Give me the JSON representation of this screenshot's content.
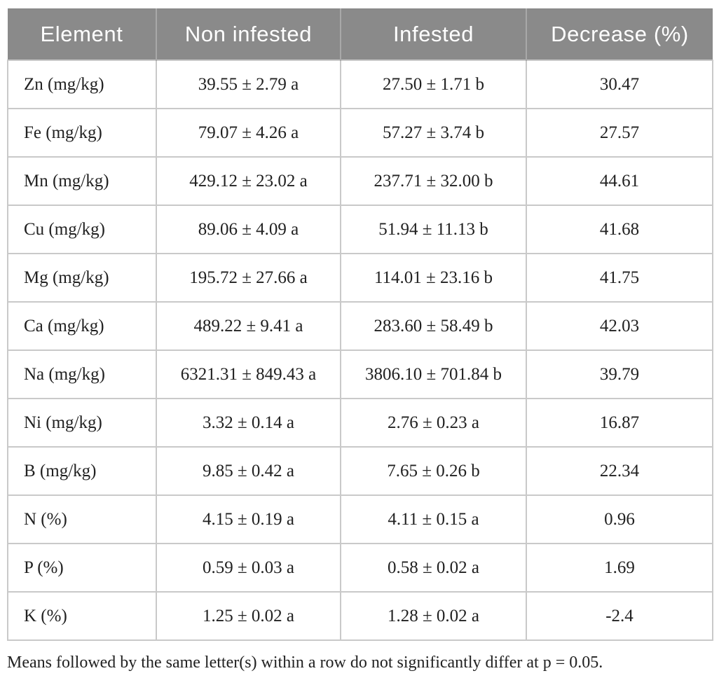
{
  "table": {
    "headers": [
      "Element",
      "Non infested",
      "Infested",
      "Decrease (%)"
    ],
    "rows": [
      [
        "Zn (mg/kg)",
        "39.55 ± 2.79 a",
        "27.50 ± 1.71 b",
        "30.47"
      ],
      [
        "Fe (mg/kg)",
        "79.07 ± 4.26 a",
        "57.27 ± 3.74 b",
        "27.57"
      ],
      [
        "Mn (mg/kg)",
        "429.12 ± 23.02 a",
        "237.71 ± 32.00 b",
        "44.61"
      ],
      [
        "Cu (mg/kg)",
        "89.06 ± 4.09 a",
        "51.94 ± 11.13 b",
        "41.68"
      ],
      [
        "Mg (mg/kg)",
        "195.72 ± 27.66 a",
        "114.01 ± 23.16 b",
        "41.75"
      ],
      [
        "Ca (mg/kg)",
        "489.22 ± 9.41 a",
        "283.60 ± 58.49 b",
        "42.03"
      ],
      [
        "Na (mg/kg)",
        "6321.31 ± 849.43 a",
        "3806.10 ± 701.84 b",
        "39.79"
      ],
      [
        "Ni (mg/kg)",
        "3.32 ± 0.14 a",
        "2.76 ± 0.23 a",
        "16.87"
      ],
      [
        "B (mg/kg)",
        "9.85 ± 0.42 a",
        "7.65 ± 0.26 b",
        "22.34"
      ],
      [
        "N (%)",
        "4.15 ± 0.19 a",
        "4.11 ± 0.15 a",
        "0.96"
      ],
      [
        "P (%)",
        "0.59 ± 0.03 a",
        "0.58 ± 0.02 a",
        "1.69"
      ],
      [
        "K (%)",
        "1.25 ± 0.02 a",
        "1.28 ± 0.02 a",
        "-2.4"
      ]
    ]
  },
  "footnote": "Means followed by the same letter(s) within a row do not significantly differ at p = 0.05.",
  "colors": {
    "header_bg": "#8a8a8a",
    "header_divider": "#a8a8a8",
    "header_text": "#ffffff",
    "body_text": "#212121",
    "grid_border": "#c9c9c9",
    "background": "#ffffff"
  }
}
